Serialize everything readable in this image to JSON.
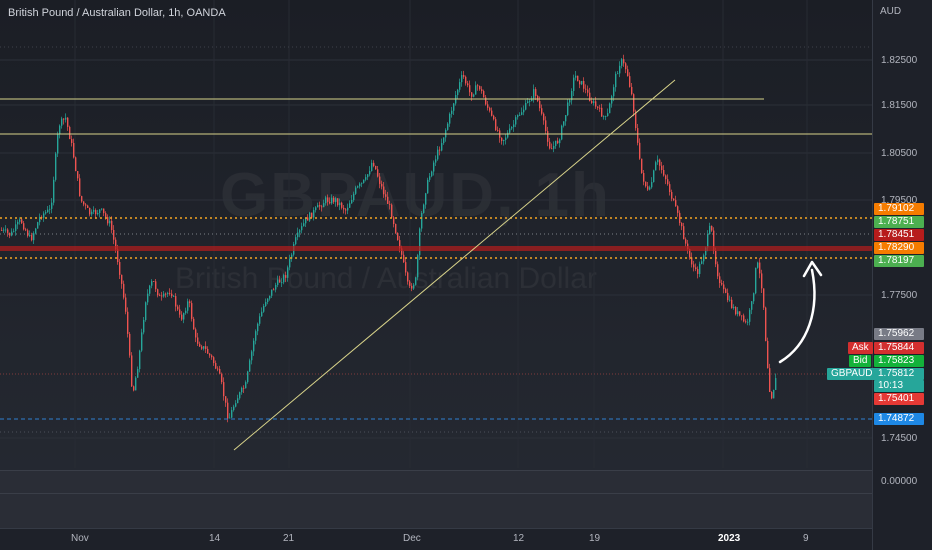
{
  "header": {
    "title": "British Pound / Australian Dollar, 1h, OANDA"
  },
  "watermark": {
    "symbol": "GBPAUD, 1h",
    "name": "British Pound / Australian Dollar"
  },
  "axis": {
    "currency": "AUD",
    "ticks": [
      "1.82500",
      "1.81500",
      "1.80500",
      "1.79500",
      "1.77500",
      "1.74500"
    ],
    "bottom_pane_value": "0.00000",
    "dates": [
      "Nov",
      "14",
      "21",
      "Dec",
      "12",
      "19",
      "2023",
      "9"
    ]
  },
  "price_tags": [
    {
      "value": "1.79102",
      "color": "#f57c00"
    },
    {
      "value": "1.78751",
      "color": "#4caf50"
    },
    {
      "value": "1.78451",
      "color": "#b71c1c"
    },
    {
      "value": "1.78290",
      "color": "#f57c00"
    },
    {
      "value": "1.78197",
      "color": "#4caf50"
    },
    {
      "value": "1.75962",
      "color": "#787b86"
    },
    {
      "value": "1.75844",
      "color": "#d32f2f"
    },
    {
      "value": "1.75823",
      "color": "#13b23a"
    },
    {
      "value": "1.75812",
      "color": "#26a69a"
    },
    {
      "value": "10:13",
      "color": "#26a69a"
    },
    {
      "value": "1.75401",
      "color": "#e53935"
    },
    {
      "value": "1.74872",
      "color": "#1e88e5"
    }
  ],
  "quote_labels": {
    "ask": "Ask",
    "bid": "Bid",
    "symbol": "GBPAUD"
  },
  "colors": {
    "up": "#26a69a",
    "down": "#ef5350",
    "orange_level": "#f5a623",
    "yellow_line": "#d8d38a",
    "red_zone": "#b71c1c",
    "blue_level": "#2f7fd0"
  }
}
